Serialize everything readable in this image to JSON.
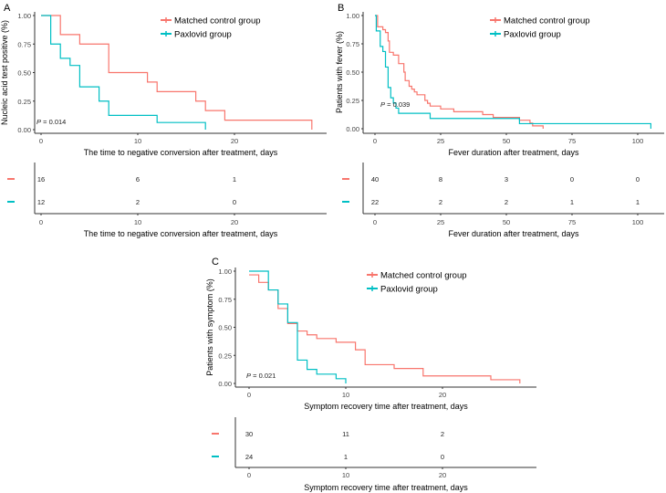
{
  "colors": {
    "control": "#F8766D",
    "paxlovid": "#00BFC4",
    "axis": "#333333"
  },
  "chart_data": [
    {
      "panel": "A",
      "type": "line",
      "subtype": "kaplan-meier step",
      "ylabel": "Nucleic acid test positive (%)",
      "xlabel": "The time to negative conversion after treatment, days",
      "xticks": [
        0,
        10,
        20
      ],
      "yticks": [
        "0.00",
        "0.25",
        "0.50",
        "0.75",
        "1.00"
      ],
      "xlim": [
        0,
        28
      ],
      "ylim": [
        0,
        1
      ],
      "p_value": "P = 0.014",
      "legend": [
        "Matched control group",
        "Paxlovid group"
      ],
      "legend_position": "top-right",
      "series": [
        {
          "name": "Matched control group",
          "steps": [
            [
              0,
              1
            ],
            [
              2,
              0.833
            ],
            [
              4,
              0.75
            ],
            [
              7,
              0.5
            ],
            [
              11,
              0.417
            ],
            [
              12,
              0.333
            ],
            [
              16,
              0.25
            ],
            [
              17,
              0.167
            ],
            [
              19,
              0.083
            ],
            [
              28,
              0
            ]
          ]
        },
        {
          "name": "Paxlovid group",
          "steps": [
            [
              0,
              1
            ],
            [
              1,
              0.75
            ],
            [
              2,
              0.625
            ],
            [
              3,
              0.5625
            ],
            [
              4,
              0.375
            ],
            [
              6,
              0.25
            ],
            [
              7,
              0.125
            ],
            [
              12,
              0.0625
            ],
            [
              17,
              0
            ]
          ]
        }
      ],
      "risk_table": {
        "times": [
          0,
          10,
          20
        ],
        "rows": [
          [
            16,
            6,
            1
          ],
          [
            12,
            2,
            0
          ]
        ],
        "xlabel": "The time to negative conversion after treatment, days"
      }
    },
    {
      "panel": "B",
      "type": "line",
      "subtype": "kaplan-meier step",
      "ylabel": "Patients with fever (%)",
      "xlabel": "Fever duration after treatment, days",
      "xticks": [
        0,
        25,
        50,
        75,
        100
      ],
      "yticks": [
        "0.00",
        "0.25",
        "0.50",
        "0.75",
        "1.00"
      ],
      "xlim": [
        0,
        105
      ],
      "ylim": [
        0,
        1
      ],
      "p_value": "P = 0.039",
      "legend": [
        "Matched control group",
        "Paxlovid group"
      ],
      "legend_position": "top-right",
      "series": [
        {
          "name": "Matched control group",
          "steps": [
            [
              0,
              1
            ],
            [
              1,
              0.9
            ],
            [
              3,
              0.875
            ],
            [
              4,
              0.85
            ],
            [
              5,
              0.775
            ],
            [
              5.5,
              0.675
            ],
            [
              7,
              0.65
            ],
            [
              9,
              0.575
            ],
            [
              11,
              0.5
            ],
            [
              11.5,
              0.425
            ],
            [
              13,
              0.375
            ],
            [
              14,
              0.35
            ],
            [
              15,
              0.325
            ],
            [
              16,
              0.3
            ],
            [
              19,
              0.25
            ],
            [
              20,
              0.225
            ],
            [
              21,
              0.2
            ],
            [
              25,
              0.175
            ],
            [
              30,
              0.15
            ],
            [
              41,
              0.125
            ],
            [
              45,
              0.1
            ],
            [
              55,
              0.075
            ],
            [
              59,
              0.05
            ],
            [
              60,
              0.025
            ],
            [
              64,
              0
            ]
          ]
        },
        {
          "name": "Paxlovid group",
          "steps": [
            [
              0,
              1
            ],
            [
              0.5,
              0.864
            ],
            [
              2,
              0.727
            ],
            [
              3,
              0.682
            ],
            [
              4,
              0.545
            ],
            [
              5,
              0.364
            ],
            [
              6,
              0.273
            ],
            [
              7,
              0.227
            ],
            [
              8,
              0.182
            ],
            [
              9,
              0.136
            ],
            [
              21,
              0.091
            ],
            [
              55,
              0.045
            ],
            [
              105,
              0
            ]
          ]
        }
      ],
      "risk_table": {
        "times": [
          0,
          25,
          50,
          75,
          100
        ],
        "rows": [
          [
            40,
            8,
            3,
            0,
            0
          ],
          [
            22,
            2,
            2,
            1,
            1
          ]
        ],
        "xlabel": "Fever duration after treatment, days"
      }
    },
    {
      "panel": "C",
      "type": "line",
      "subtype": "kaplan-meier step",
      "ylabel": "Patients with symptom (%)",
      "xlabel": "Symptom recovery time after treatment, days",
      "xticks": [
        0,
        10,
        20
      ],
      "yticks": [
        "0.00",
        "0.25",
        "0.50",
        "0.75",
        "1.00"
      ],
      "xlim": [
        0,
        28
      ],
      "ylim": [
        0,
        1
      ],
      "p_value": "P = 0.021",
      "legend": [
        "Matched control group",
        "Paxlovid group"
      ],
      "legend_position": "top-right",
      "series": [
        {
          "name": "Matched control group",
          "steps": [
            [
              0,
              0.967
            ],
            [
              1,
              0.9
            ],
            [
              2,
              0.833
            ],
            [
              3,
              0.667
            ],
            [
              4,
              0.533
            ],
            [
              5,
              0.467
            ],
            [
              6,
              0.433
            ],
            [
              7,
              0.4
            ],
            [
              9,
              0.367
            ],
            [
              11,
              0.3
            ],
            [
              12,
              0.167
            ],
            [
              15,
              0.133
            ],
            [
              18,
              0.067
            ],
            [
              25,
              0.033
            ],
            [
              28,
              0
            ]
          ]
        },
        {
          "name": "Paxlovid group",
          "steps": [
            [
              0,
              1
            ],
            [
              2,
              0.833
            ],
            [
              3,
              0.708
            ],
            [
              4,
              0.542
            ],
            [
              5,
              0.208
            ],
            [
              6,
              0.125
            ],
            [
              7,
              0.083
            ],
            [
              9,
              0.042
            ],
            [
              10,
              0
            ]
          ]
        }
      ],
      "risk_table": {
        "times": [
          0,
          10,
          20
        ],
        "rows": [
          [
            30,
            11,
            2
          ],
          [
            24,
            1,
            0
          ]
        ],
        "xlabel": "Symptom recovery time after treatment, days"
      }
    }
  ]
}
